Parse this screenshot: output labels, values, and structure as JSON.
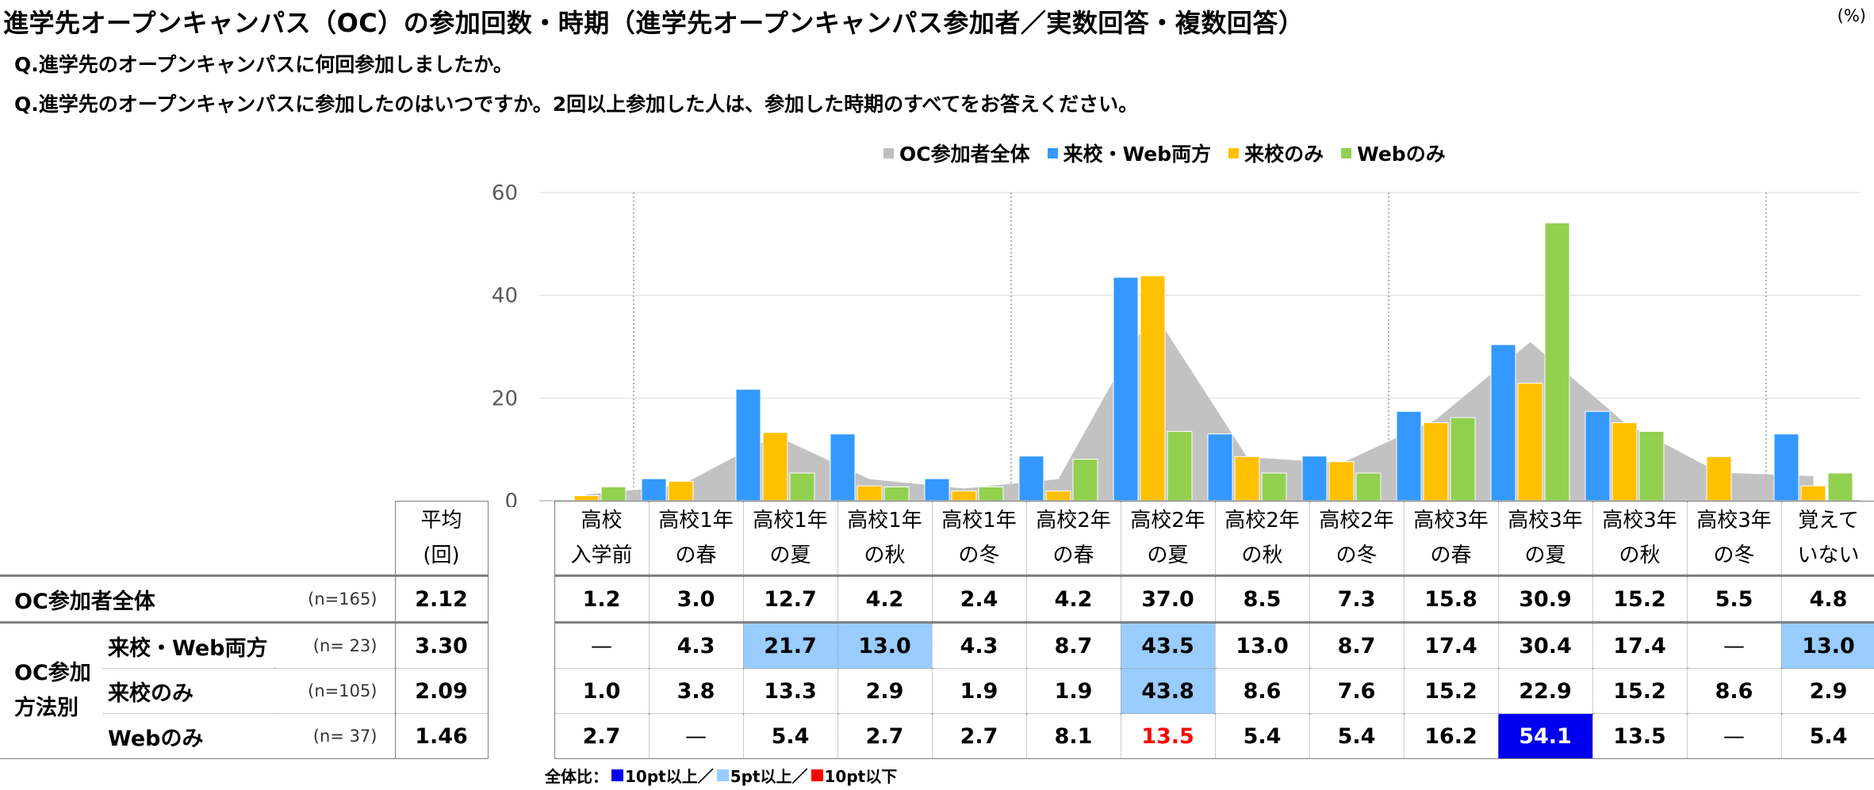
{
  "title": "進学先オープンキャンパス（OC）の参加回数・時期（進学先オープンキャンパス参加者／実数回答・複数回答）",
  "unit_label": "(%)",
  "questions": [
    "Q.進学先のオープンキャンパスに何回参加しましたか。",
    "Q.進学先のオープンキャンパスに参加したのはいつですか。2回以上参加した人は、参加した時期のすべてをお答えください。"
  ],
  "colors": {
    "all": "#bfbfbf",
    "both": "#3399ff",
    "visit": "#ffc000",
    "web": "#92d050",
    "hl_strong": "#0000ee",
    "hl_light": "#99ccff",
    "low_red": "#ff0000"
  },
  "chart_data": {
    "type": "bar",
    "categories": [
      "高校入学前",
      "高校1年の春",
      "高校1年の夏",
      "高校1年の秋",
      "高校1年の冬",
      "高校2年の春",
      "高校2年の夏",
      "高校2年の秋",
      "高校2年の冬",
      "高校3年の春",
      "高校3年の夏",
      "高校3年の秋",
      "高校3年の冬",
      "覚えていない"
    ],
    "category_lines": [
      [
        "高校",
        "入学前"
      ],
      [
        "高校1年",
        "の春"
      ],
      [
        "高校1年",
        "の夏"
      ],
      [
        "高校1年",
        "の秋"
      ],
      [
        "高校1年",
        "の冬"
      ],
      [
        "高校2年",
        "の春"
      ],
      [
        "高校2年",
        "の夏"
      ],
      [
        "高校2年",
        "の秋"
      ],
      [
        "高校2年",
        "の冬"
      ],
      [
        "高校3年",
        "の春"
      ],
      [
        "高校3年",
        "の夏"
      ],
      [
        "高校3年",
        "の秋"
      ],
      [
        "高校3年",
        "の冬"
      ],
      [
        "覚えて",
        "いない"
      ]
    ],
    "area_series": {
      "name": "OC参加者全体",
      "type": "area",
      "values": [
        1.2,
        3.0,
        12.7,
        4.2,
        2.4,
        4.2,
        37.0,
        8.5,
        7.3,
        15.8,
        30.9,
        15.2,
        5.5,
        4.8
      ]
    },
    "series": [
      {
        "name": "来校・Web両方",
        "values": [
          null,
          4.3,
          21.7,
          13.0,
          4.3,
          8.7,
          43.5,
          13.0,
          8.7,
          17.4,
          30.4,
          17.4,
          null,
          13.0
        ]
      },
      {
        "name": "来校のみ",
        "values": [
          1.0,
          3.8,
          13.3,
          2.9,
          1.9,
          1.9,
          43.8,
          8.6,
          7.6,
          15.2,
          22.9,
          15.2,
          8.6,
          2.9
        ]
      },
      {
        "name": "Webのみ",
        "values": [
          2.7,
          null,
          5.4,
          2.7,
          2.7,
          8.1,
          13.5,
          5.4,
          5.4,
          16.2,
          54.1,
          13.5,
          null,
          5.4
        ]
      }
    ],
    "ylim": [
      0,
      60
    ],
    "yticks": [
      "0",
      "20",
      "40",
      "60"
    ],
    "ytick_values": [
      0,
      20,
      40,
      60
    ],
    "grid": true,
    "legend_position": "top"
  },
  "table": {
    "avg_header": [
      "平均",
      "(回)"
    ],
    "group_label": [
      "OC参加",
      "方法別"
    ],
    "rows": [
      {
        "label": "OC参加者全体",
        "n": "(n=165)",
        "avg": "2.12",
        "cells": [
          "1.2",
          "3.0",
          "12.7",
          "4.2",
          "2.4",
          "4.2",
          "37.0",
          "8.5",
          "7.3",
          "15.8",
          "30.9",
          "15.2",
          "5.5",
          "4.8"
        ],
        "highlights": [
          "",
          "",
          "",
          "",
          "",
          "",
          "",
          "",
          "",
          "",
          "",
          "",
          "",
          ""
        ]
      },
      {
        "label": "来校・Web両方",
        "n": "(n=  23)",
        "avg": "3.30",
        "cells": [
          "—",
          "4.3",
          "21.7",
          "13.0",
          "4.3",
          "8.7",
          "43.5",
          "13.0",
          "8.7",
          "17.4",
          "30.4",
          "17.4",
          "—",
          "13.0"
        ],
        "highlights": [
          "",
          "",
          "light",
          "light",
          "",
          "",
          "light",
          "",
          "",
          "",
          "",
          "",
          "",
          "light"
        ]
      },
      {
        "label": "来校のみ",
        "n": "(n=105)",
        "avg": "2.09",
        "cells": [
          "1.0",
          "3.8",
          "13.3",
          "2.9",
          "1.9",
          "1.9",
          "43.8",
          "8.6",
          "7.6",
          "15.2",
          "22.9",
          "15.2",
          "8.6",
          "2.9"
        ],
        "highlights": [
          "",
          "",
          "",
          "",
          "",
          "",
          "light",
          "",
          "",
          "",
          "",
          "",
          "",
          ""
        ]
      },
      {
        "label": "Webのみ",
        "n": "(n=  37)",
        "avg": "1.46",
        "cells": [
          "2.7",
          "—",
          "5.4",
          "2.7",
          "2.7",
          "8.1",
          "13.5",
          "5.4",
          "5.4",
          "16.2",
          "54.1",
          "13.5",
          "—",
          "5.4"
        ],
        "highlights": [
          "",
          "",
          "",
          "",
          "",
          "",
          "red",
          "",
          "",
          "",
          "strong",
          "",
          "",
          ""
        ]
      }
    ]
  },
  "footnote": {
    "prefix": "全体比：",
    "items": [
      "10pt以上／",
      "5pt以上／",
      "10pt以下"
    ]
  }
}
